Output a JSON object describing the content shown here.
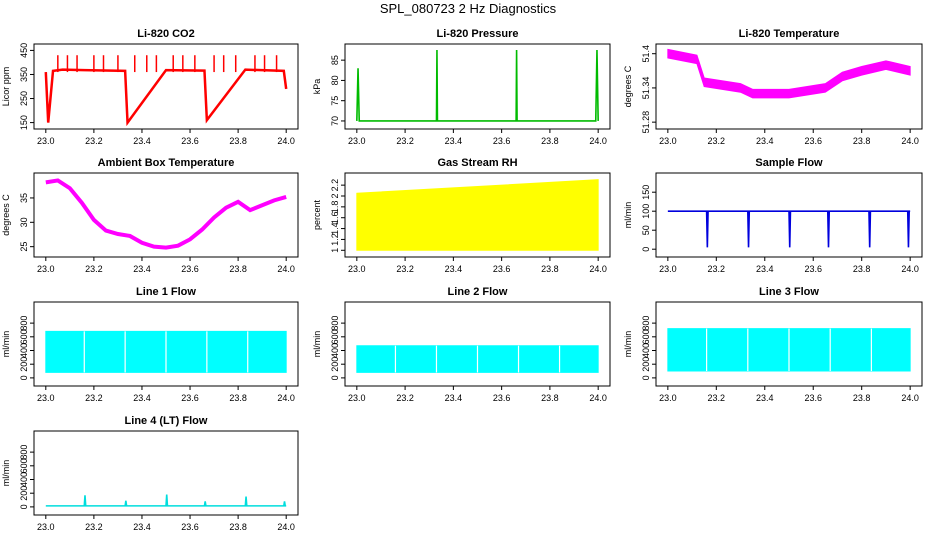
{
  "page": {
    "title": "SPL_080723  2 Hz Diagnostics"
  },
  "chart_data": [
    {
      "id": "co2",
      "type": "line",
      "title": "Li-820 CO2",
      "ylabel": "Licor ppm",
      "color": "#ff0000",
      "x_ticks": [
        "23.0",
        "23.2",
        "23.4",
        "23.6",
        "23.8",
        "24.0"
      ],
      "xlim": [
        22.98,
        24.02
      ],
      "y_ticks": [
        150,
        250,
        350,
        450
      ],
      "ylim": [
        140,
        460
      ],
      "x": [
        23.0,
        23.01,
        23.03,
        23.07,
        23.16,
        23.33,
        23.34,
        23.5,
        23.66,
        23.67,
        23.83,
        23.99,
        24.0
      ],
      "values": [
        360,
        150,
        365,
        370,
        368,
        365,
        150,
        368,
        366,
        160,
        370,
        365,
        290
      ],
      "spikes_x": [
        23.05,
        23.09,
        23.13,
        23.2,
        23.24,
        23.3,
        23.37,
        23.42,
        23.46,
        23.53,
        23.57,
        23.62,
        23.7,
        23.74,
        23.79,
        23.87,
        23.91,
        23.96
      ],
      "spikes_y": 430
    },
    {
      "id": "pressure",
      "type": "line",
      "title": "Li-820 Pressure",
      "ylabel": "kPa",
      "color": "#00bb00",
      "x_ticks": [
        "23.0",
        "23.2",
        "23.4",
        "23.6",
        "23.8",
        "24.0"
      ],
      "xlim": [
        22.98,
        24.02
      ],
      "y_ticks": [
        70,
        75,
        80,
        85
      ],
      "ylim": [
        69,
        88
      ],
      "x": [
        23.0,
        23.005,
        23.01,
        23.33,
        23.332,
        23.334,
        23.66,
        23.662,
        23.664,
        23.99,
        23.995,
        24.0
      ],
      "values": [
        70,
        83,
        70,
        70,
        87.5,
        70,
        70,
        87.5,
        70,
        70,
        87.5,
        70
      ]
    },
    {
      "id": "temperature",
      "type": "line",
      "title": "Li-820 Temperature",
      "ylabel": "degrees C",
      "color": "#ff00ff",
      "x_ticks": [
        "23.0",
        "23.2",
        "23.4",
        "23.6",
        "23.8",
        "24.0"
      ],
      "xlim": [
        22.98,
        24.02
      ],
      "y_ticks": [
        51.28,
        51.34,
        51.4
      ],
      "ylim": [
        51.275,
        51.41
      ],
      "x": [
        23.0,
        23.12,
        23.15,
        23.3,
        23.35,
        23.5,
        23.65,
        23.72,
        23.8,
        23.9,
        24.0
      ],
      "values": [
        51.4,
        51.39,
        51.35,
        51.34,
        51.33,
        51.33,
        51.34,
        51.36,
        51.37,
        51.38,
        51.37
      ],
      "band_width": 0.015
    },
    {
      "id": "ambient",
      "type": "line",
      "title": "Ambient Box Temperature",
      "ylabel": "degrees C",
      "color": "#ff00ff",
      "x_ticks": [
        "23.0",
        "23.2",
        "23.4",
        "23.6",
        "23.8",
        "24.0"
      ],
      "xlim": [
        22.98,
        24.02
      ],
      "y_ticks": [
        25,
        30,
        35
      ],
      "ylim": [
        23.7,
        39.3
      ],
      "x": [
        23.0,
        23.05,
        23.1,
        23.15,
        23.2,
        23.25,
        23.3,
        23.35,
        23.4,
        23.45,
        23.5,
        23.55,
        23.6,
        23.65,
        23.7,
        23.75,
        23.8,
        23.85,
        23.9,
        23.95,
        24.0
      ],
      "values": [
        38.2,
        38.6,
        37.0,
        34.0,
        30.5,
        28.3,
        27.6,
        27.2,
        25.8,
        25.0,
        24.8,
        25.2,
        26.5,
        28.5,
        31.0,
        33.0,
        34.2,
        32.5,
        33.5,
        34.5,
        35.2
      ]
    },
    {
      "id": "rh",
      "type": "band",
      "title": "Gas Stream RH",
      "ylabel": "percent",
      "color": "#ffff00",
      "x_ticks": [
        "23.0",
        "23.2",
        "23.4",
        "23.6",
        "23.8",
        "24.0"
      ],
      "xlim": [
        22.98,
        24.02
      ],
      "y_ticks": [
        1.0,
        1.2,
        1.4,
        1.6,
        1.8,
        2.0,
        2.2
      ],
      "ylim": [
        0.95,
        2.35
      ],
      "x": [
        23.0,
        24.0
      ],
      "lower": [
        1.0,
        1.0
      ],
      "upper": [
        2.05,
        2.3
      ]
    },
    {
      "id": "sample",
      "type": "line",
      "title": "Sample Flow",
      "ylabel": "ml/min",
      "color": "#0000dd",
      "x_ticks": [
        "23.0",
        "23.2",
        "23.4",
        "23.6",
        "23.8",
        "24.0"
      ],
      "xlim": [
        22.98,
        24.02
      ],
      "y_ticks": [
        0,
        50,
        100,
        150
      ],
      "ylim": [
        -10,
        190
      ],
      "x": [
        23.0,
        23.16,
        23.163,
        23.166,
        23.33,
        23.333,
        23.336,
        23.5,
        23.503,
        23.506,
        23.66,
        23.663,
        23.666,
        23.83,
        23.833,
        23.836,
        23.99,
        23.993,
        23.996,
        24.0
      ],
      "values": [
        100,
        100,
        5,
        100,
        100,
        5,
        100,
        100,
        5,
        100,
        100,
        5,
        100,
        100,
        5,
        100,
        100,
        5,
        100,
        100
      ]
    },
    {
      "id": "line1",
      "type": "band",
      "title": "Line 1 Flow",
      "ylabel": "ml/min",
      "color": "#00ffff",
      "x_ticks": [
        "23.0",
        "23.2",
        "23.4",
        "23.6",
        "23.8",
        "24.0"
      ],
      "xlim": [
        22.98,
        24.02
      ],
      "y_ticks": [
        0,
        200,
        400,
        600,
        800
      ],
      "ylim": [
        -60,
        1050
      ],
      "x": [
        23.0,
        24.0
      ],
      "lower": [
        80,
        80
      ],
      "upper": [
        680,
        680
      ]
    },
    {
      "id": "line2",
      "type": "band",
      "title": "Line 2 Flow",
      "ylabel": "ml/min",
      "color": "#00ffff",
      "x_ticks": [
        "23.0",
        "23.2",
        "23.4",
        "23.6",
        "23.8",
        "24.0"
      ],
      "xlim": [
        22.98,
        24.02
      ],
      "y_ticks": [
        0,
        200,
        400,
        600,
        800
      ],
      "ylim": [
        -60,
        1050
      ],
      "x": [
        23.0,
        24.0
      ],
      "lower": [
        80,
        80
      ],
      "upper": [
        470,
        470
      ]
    },
    {
      "id": "line3",
      "type": "band",
      "title": "Line 3 Flow",
      "ylabel": "ml/min",
      "color": "#00ffff",
      "x_ticks": [
        "23.0",
        "23.2",
        "23.4",
        "23.6",
        "23.8",
        "24.0"
      ],
      "xlim": [
        22.98,
        24.02
      ],
      "y_ticks": [
        0,
        200,
        400,
        600,
        800
      ],
      "ylim": [
        -60,
        1050
      ],
      "x": [
        23.0,
        24.0
      ],
      "lower": [
        100,
        100
      ],
      "upper": [
        720,
        720
      ]
    },
    {
      "id": "line4",
      "type": "line",
      "title": "Line 4 (LT) Flow",
      "ylabel": "ml/min",
      "color": "#00dddd",
      "x_ticks": [
        "23.0",
        "23.2",
        "23.4",
        "23.6",
        "23.8",
        "24.0"
      ],
      "xlim": [
        22.98,
        24.02
      ],
      "y_ticks": [
        0,
        200,
        400,
        600,
        800
      ],
      "ylim": [
        -60,
        1050
      ],
      "x": [
        23.0,
        23.16,
        23.163,
        23.166,
        23.33,
        23.333,
        23.336,
        23.5,
        23.503,
        23.506,
        23.66,
        23.663,
        23.666,
        23.83,
        23.833,
        23.836,
        23.99,
        23.993,
        23.996,
        24.0
      ],
      "values": [
        15,
        15,
        170,
        15,
        15,
        90,
        15,
        15,
        180,
        15,
        15,
        80,
        15,
        15,
        150,
        15,
        15,
        80,
        15,
        15
      ]
    }
  ]
}
